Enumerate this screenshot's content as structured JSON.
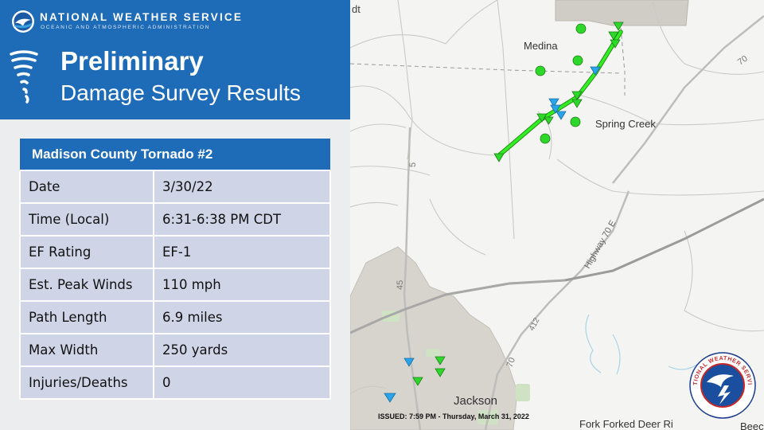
{
  "header": {
    "agency_name": "NATIONAL WEATHER SERVICE",
    "agency_sub": "OCEANIC AND ATMOSPHERIC ADMINISTRATION",
    "title_line1": "Preliminary",
    "title_line2": "Damage Survey Results"
  },
  "table": {
    "title": "Madison County Tornado #2",
    "rows": [
      {
        "label": "Date",
        "value": "3/30/22"
      },
      {
        "label": "Time (Local)",
        "value": "6:31-6:38 PM CDT"
      },
      {
        "label": "EF Rating",
        "value": "EF-1"
      },
      {
        "label": "Est. Peak Winds",
        "value": "110 mph"
      },
      {
        "label": "Path Length",
        "value": "6.9 miles"
      },
      {
        "label": "Max Width",
        "value": "250 yards"
      },
      {
        "label": "Injuries/Deaths",
        "value": "0"
      }
    ]
  },
  "map": {
    "labels": {
      "top_left_fragment": "dt",
      "medina": "Medina",
      "spring_creek": "Spring Creek",
      "jackson": "Jackson",
      "highway": "Highway 70 E",
      "route_70_ne": "70",
      "route_70_s": "70",
      "route_5": "5",
      "route_45": "45",
      "route_412": "412",
      "bottom_river": "Fork Forked Deer Ri",
      "bottom_right": "Beec"
    }
  },
  "issued": "ISSUED: 7:59 PM - Thursday, March 31, 2022",
  "seal": {
    "text": "NATIONAL WEATHER SERVICE"
  },
  "colors": {
    "header_blue": "#1e6bb8",
    "row_fill": "#cfd5e7",
    "panel_bg": "#ecedef",
    "track_green": "#33ee22",
    "marker_green": "#2ed82a",
    "marker_blue": "#2aa3e8"
  }
}
